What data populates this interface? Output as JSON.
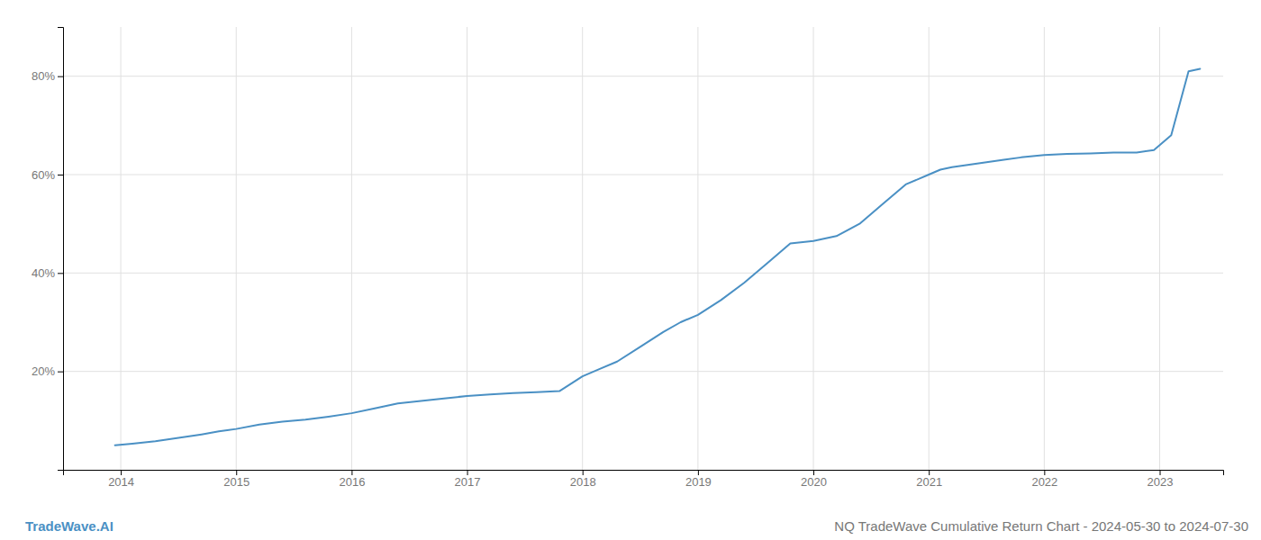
{
  "chart_data": {
    "type": "line",
    "title": "NQ TradeWave Cumulative Return Chart - 2024-05-30 to 2024-07-30",
    "annotations": [
      "TradeWave.AI"
    ],
    "x": [
      2013.95,
      2014.1,
      2014.3,
      2014.5,
      2014.7,
      2014.85,
      2015.0,
      2015.2,
      2015.4,
      2015.6,
      2015.8,
      2016.0,
      2016.2,
      2016.4,
      2016.6,
      2016.8,
      2017.0,
      2017.2,
      2017.4,
      2017.6,
      2017.8,
      2018.0,
      2018.15,
      2018.3,
      2018.5,
      2018.7,
      2018.85,
      2019.0,
      2019.2,
      2019.4,
      2019.6,
      2019.8,
      2020.0,
      2020.2,
      2020.4,
      2020.6,
      2020.8,
      2021.0,
      2021.1,
      2021.2,
      2021.35,
      2021.5,
      2021.65,
      2021.8,
      2022.0,
      2022.2,
      2022.4,
      2022.6,
      2022.8,
      2022.95,
      2023.1,
      2023.25,
      2023.35
    ],
    "values": [
      5.0,
      5.3,
      5.8,
      6.5,
      7.2,
      7.8,
      8.3,
      9.2,
      9.8,
      10.2,
      10.8,
      11.5,
      12.5,
      13.5,
      14.0,
      14.5,
      15.0,
      15.3,
      15.6,
      15.8,
      16.0,
      19.0,
      20.5,
      22.0,
      25.0,
      28.0,
      30.0,
      31.5,
      34.5,
      38.0,
      42.0,
      46.0,
      46.5,
      47.5,
      50.0,
      54.0,
      58.0,
      60.0,
      61.0,
      61.5,
      62.0,
      62.5,
      63.0,
      63.5,
      64.0,
      64.2,
      64.3,
      64.5,
      64.5,
      65.0,
      68.0,
      81.0,
      81.5
    ],
    "color": "#4a90c4",
    "xlim": [
      2013.5,
      2023.55
    ],
    "xticks": [
      2014,
      2015,
      2016,
      2017,
      2018,
      2019,
      2020,
      2021,
      2022,
      2023
    ],
    "ylim": [
      0,
      90
    ],
    "yticks": [
      {
        "value": 20,
        "label": "20%"
      },
      {
        "value": 40,
        "label": "40%"
      },
      {
        "value": 60,
        "label": "60%"
      },
      {
        "value": 80,
        "label": "80%"
      }
    ],
    "grid": true
  }
}
